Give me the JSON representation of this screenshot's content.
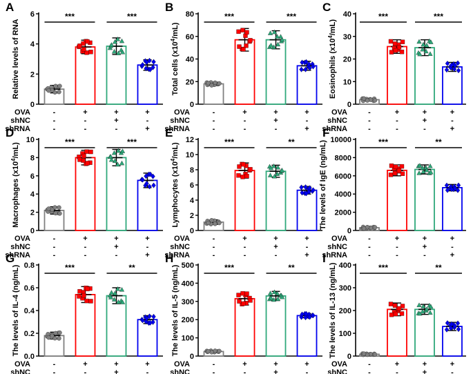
{
  "figure": {
    "group_row_labels": [
      "OVA",
      "shNC",
      "shRNA"
    ],
    "group_signs": [
      [
        "-",
        "+",
        "+",
        "+"
      ],
      [
        "-",
        "-",
        "+",
        "-"
      ],
      [
        "-",
        "-",
        "-",
        "+"
      ]
    ],
    "group_colors": [
      "#808080",
      "#ff0000",
      "#2ea87a",
      "#0000ee"
    ],
    "marker_shapes": [
      "circle",
      "square",
      "triangle",
      "diamond"
    ]
  },
  "chart_data": [
    {
      "panel": "A",
      "type": "bar",
      "ylabel": "Relative levels of RNA",
      "ylim": [
        0,
        6
      ],
      "yticks": [
        "0",
        "2",
        "4",
        "6"
      ],
      "categories": [
        "control",
        "OVA",
        "OVA+shNC",
        "OVA+shRNA"
      ],
      "values": [
        1.0,
        3.8,
        3.85,
        2.6
      ],
      "errors": [
        0.25,
        0.45,
        0.55,
        0.35
      ],
      "significance": [
        {
          "label": "***",
          "from": 0,
          "to": 1
        },
        {
          "label": "***",
          "from": 2,
          "to": 3
        }
      ]
    },
    {
      "panel": "B",
      "type": "bar",
      "ylabel": "Total cells (x10^4/mL)",
      "ylim": [
        0,
        80
      ],
      "yticks": [
        "0",
        "20",
        "40",
        "60",
        "80"
      ],
      "categories": [
        "control",
        "OVA",
        "OVA+shNC",
        "OVA+shRNA"
      ],
      "values": [
        18,
        57,
        57,
        34
      ],
      "errors": [
        1.5,
        10,
        8,
        4
      ],
      "significance": [
        {
          "label": "***",
          "from": 0,
          "to": 1
        },
        {
          "label": "***",
          "from": 2,
          "to": 3
        }
      ]
    },
    {
      "panel": "C",
      "type": "bar",
      "ylabel": "Eosinophils (x10^4/mL)",
      "ylim": [
        0,
        40
      ],
      "yticks": [
        "0",
        "10",
        "20",
        "30",
        "40"
      ],
      "categories": [
        "control",
        "OVA",
        "OVA+shNC",
        "OVA+shRNA"
      ],
      "values": [
        2,
        25.5,
        25,
        16.5
      ],
      "errors": [
        0.6,
        3,
        3.5,
        2
      ],
      "significance": [
        {
          "label": "***",
          "from": 0,
          "to": 1
        },
        {
          "label": "***",
          "from": 2,
          "to": 3
        }
      ]
    },
    {
      "panel": "D",
      "type": "bar",
      "ylabel": "Macrophages (x10^4/mL)",
      "ylim": [
        0,
        10
      ],
      "yticks": [
        "0",
        "2",
        "4",
        "6",
        "8",
        "10"
      ],
      "categories": [
        "control",
        "OVA",
        "OVA+shNC",
        "OVA+shRNA"
      ],
      "values": [
        2.2,
        8.0,
        8.0,
        5.5
      ],
      "errors": [
        0.4,
        0.8,
        0.9,
        0.8
      ],
      "significance": [
        {
          "label": "***",
          "from": 0,
          "to": 1
        },
        {
          "label": "***",
          "from": 2,
          "to": 3
        }
      ]
    },
    {
      "panel": "E",
      "type": "bar",
      "ylabel": "Lymphocytes (x10^4/mL)",
      "ylim": [
        0,
        12
      ],
      "yticks": [
        "0",
        "2",
        "4",
        "6",
        "8",
        "10",
        "12"
      ],
      "categories": [
        "control",
        "OVA",
        "OVA+shNC",
        "OVA+shRNA"
      ],
      "values": [
        1.1,
        7.9,
        7.8,
        5.3
      ],
      "errors": [
        0.3,
        1.0,
        0.8,
        0.5
      ],
      "significance": [
        {
          "label": "***",
          "from": 0,
          "to": 1
        },
        {
          "label": "**",
          "from": 2,
          "to": 3
        }
      ]
    },
    {
      "panel": "F",
      "type": "bar",
      "ylabel": "The levels of IgE (ng/mL)",
      "ylim": [
        0,
        10000
      ],
      "yticks": [
        "0",
        "2000",
        "4000",
        "6000",
        "8000",
        "10000"
      ],
      "categories": [
        "control",
        "OVA",
        "OVA+shNC",
        "OVA+shRNA"
      ],
      "values": [
        300,
        6600,
        6700,
        4700
      ],
      "errors": [
        100,
        600,
        500,
        350
      ],
      "significance": [
        {
          "label": "***",
          "from": 0,
          "to": 1
        },
        {
          "label": "**",
          "from": 2,
          "to": 3
        }
      ]
    },
    {
      "panel": "G",
      "type": "bar",
      "ylabel": "The levels of IL-4 (ng/mL)",
      "ylim": [
        0,
        0.8
      ],
      "yticks": [
        "0.0",
        "0.2",
        "0.4",
        "0.6",
        "0.8"
      ],
      "categories": [
        "control",
        "OVA",
        "OVA+shNC",
        "OVA+shRNA"
      ],
      "values": [
        0.18,
        0.54,
        0.53,
        0.32
      ],
      "errors": [
        0.03,
        0.07,
        0.07,
        0.035
      ],
      "significance": [
        {
          "label": "***",
          "from": 0,
          "to": 1
        },
        {
          "label": "**",
          "from": 2,
          "to": 3
        }
      ]
    },
    {
      "panel": "H",
      "type": "bar",
      "ylabel": "The levels of IL-5 (ng/mL)",
      "ylim": [
        0,
        500
      ],
      "yticks": [
        "0",
        "100",
        "200",
        "300",
        "400",
        "500"
      ],
      "categories": [
        "control",
        "OVA",
        "OVA+shNC",
        "OVA+shRNA"
      ],
      "values": [
        25,
        315,
        330,
        222
      ],
      "errors": [
        5,
        35,
        25,
        12
      ],
      "significance": [
        {
          "label": "***",
          "from": 0,
          "to": 1
        },
        {
          "label": "**",
          "from": 2,
          "to": 3
        }
      ]
    },
    {
      "panel": "I",
      "type": "bar",
      "ylabel": "The levels of IL-13 (ng/mL)",
      "ylim": [
        0,
        400
      ],
      "yticks": [
        "0",
        "100",
        "200",
        "300",
        "400"
      ],
      "categories": [
        "control",
        "OVA",
        "OVA+shNC",
        "OVA+shRNA"
      ],
      "values": [
        8,
        205,
        205,
        130
      ],
      "errors": [
        3,
        28,
        22,
        18
      ],
      "significance": [
        {
          "label": "***",
          "from": 0,
          "to": 1
        },
        {
          "label": "**",
          "from": 2,
          "to": 3
        }
      ]
    }
  ]
}
